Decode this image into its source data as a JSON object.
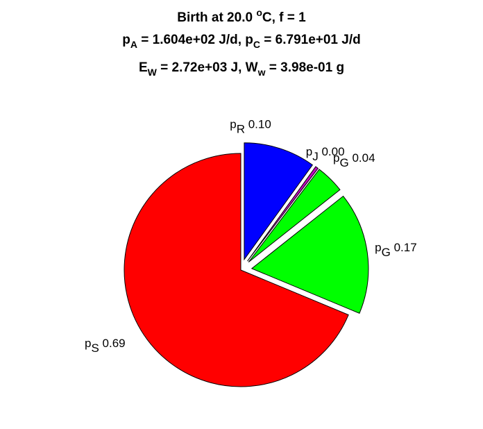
{
  "chart_data": {
    "type": "pie",
    "title_lines": [
      {
        "parts": [
          {
            "t": "Birth at 20.0 "
          },
          {
            "t": "o",
            "sup": true
          },
          {
            "t": "C, f = 1"
          }
        ]
      },
      {
        "parts": [
          {
            "t": "p"
          },
          {
            "t": "A",
            "sub": true
          },
          {
            "t": " = 1.604e+02 J/d, p"
          },
          {
            "t": "C",
            "sub": true
          },
          {
            "t": " = 6.791e+01 J/d"
          }
        ]
      },
      {
        "parts": [
          {
            "t": "E"
          },
          {
            "t": "W",
            "sub": true
          },
          {
            "t": " = 2.72e+03 J, W"
          },
          {
            "t": "w",
            "sub": true
          },
          {
            "t": " = 3.98e-01 g"
          }
        ]
      }
    ],
    "slices": [
      {
        "symbol": "p",
        "sub": "R",
        "value_label": "0.10",
        "value": 0.1,
        "color": "#0000ff",
        "exploded": true
      },
      {
        "symbol": "p",
        "sub": "J",
        "value_label": "0.00",
        "value": 0.004,
        "color": "#c000c0",
        "exploded": true
      },
      {
        "symbol": "p",
        "sub": "G",
        "value_label": "0.04",
        "value": 0.04,
        "color": "#00ff00",
        "exploded": true
      },
      {
        "symbol": "p",
        "sub": "G",
        "value_label": "0.17",
        "value": 0.17,
        "color": "#00ff00",
        "exploded": true
      },
      {
        "symbol": "p",
        "sub": "S",
        "value_label": "0.69",
        "value": 0.69,
        "color": "#ff0000",
        "exploded": false
      }
    ],
    "legend": "none"
  }
}
